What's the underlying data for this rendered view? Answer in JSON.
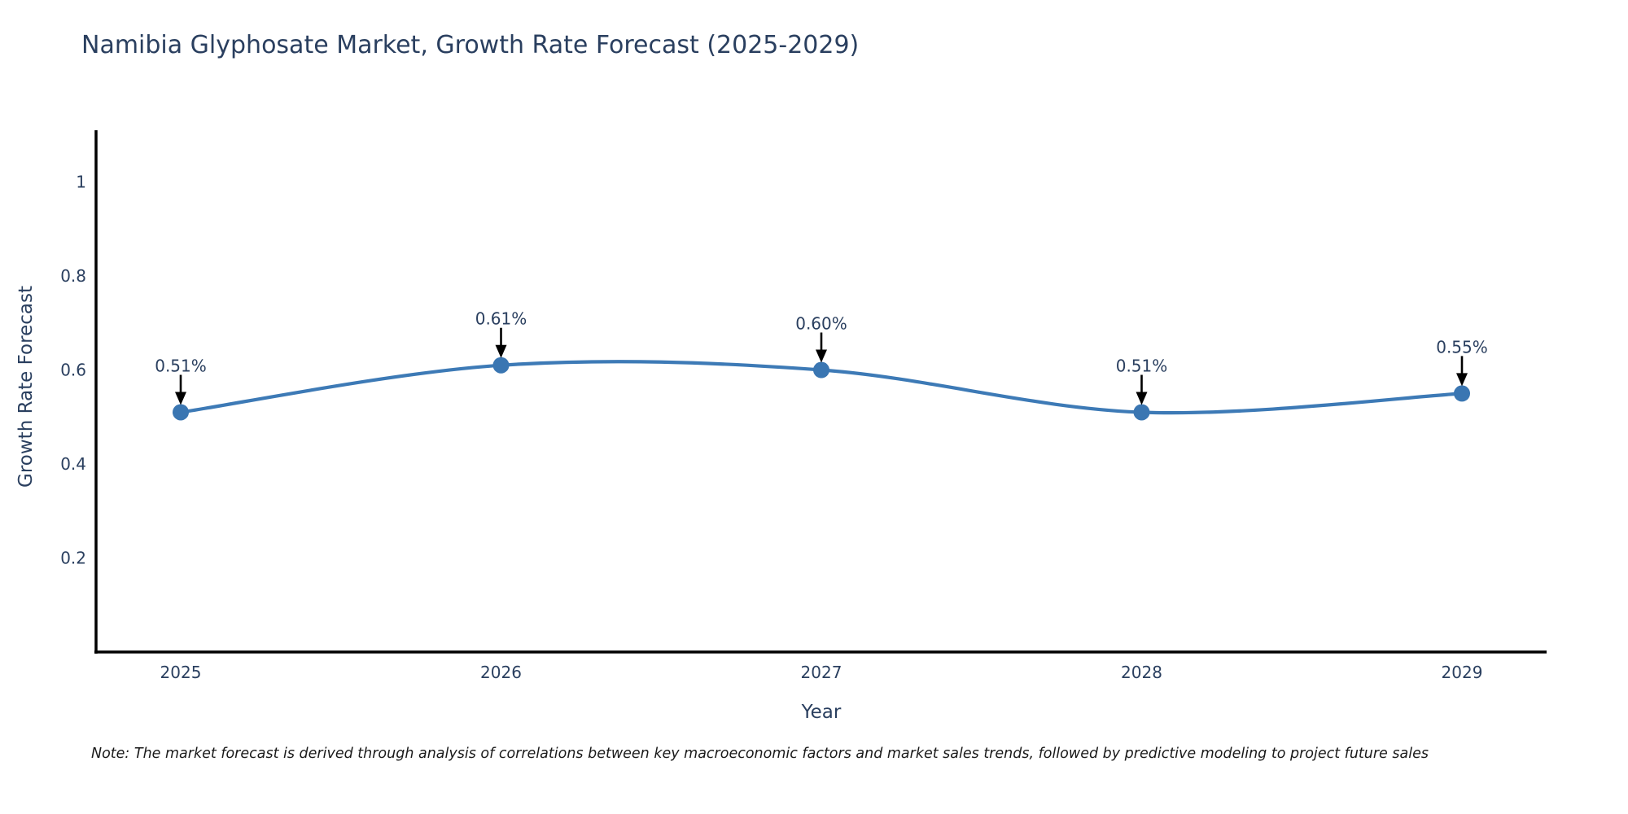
{
  "title": "Namibia Glyphosate Market, Growth Rate Forecast (2025-2029)",
  "note": "Note: The market forecast is derived through analysis of correlations between key macroeconomic factors and market sales trends, followed by predictive modeling to project future sales",
  "chart_data": {
    "type": "line",
    "title": "Namibia Glyphosate Market, Growth Rate Forecast (2025-2029)",
    "x": [
      2025,
      2026,
      2027,
      2028,
      2029
    ],
    "y": [
      0.51,
      0.61,
      0.6,
      0.51,
      0.55
    ],
    "point_labels": [
      "0.51%",
      "0.61%",
      "0.60%",
      "0.51%",
      "0.55%"
    ],
    "xlabel": "Year",
    "ylabel": "Growth Rate Forecast",
    "x_tick_labels": [
      "2025",
      "2026",
      "2027",
      "2028",
      "2029"
    ],
    "y_ticks": [
      0.2,
      0.4,
      0.6,
      0.8,
      1
    ],
    "y_tick_labels": [
      "0.2",
      "0.4",
      "0.6",
      "0.8",
      "1"
    ],
    "ylim": [
      0,
      1.11
    ],
    "grid": false,
    "legend": "none",
    "line_shape": "spline",
    "colors": {
      "line": "#3d7ab6",
      "marker": "#3a76b2",
      "annotation_arrow": "#000000",
      "axis": "#000000",
      "text": "#2a3f5f"
    }
  }
}
